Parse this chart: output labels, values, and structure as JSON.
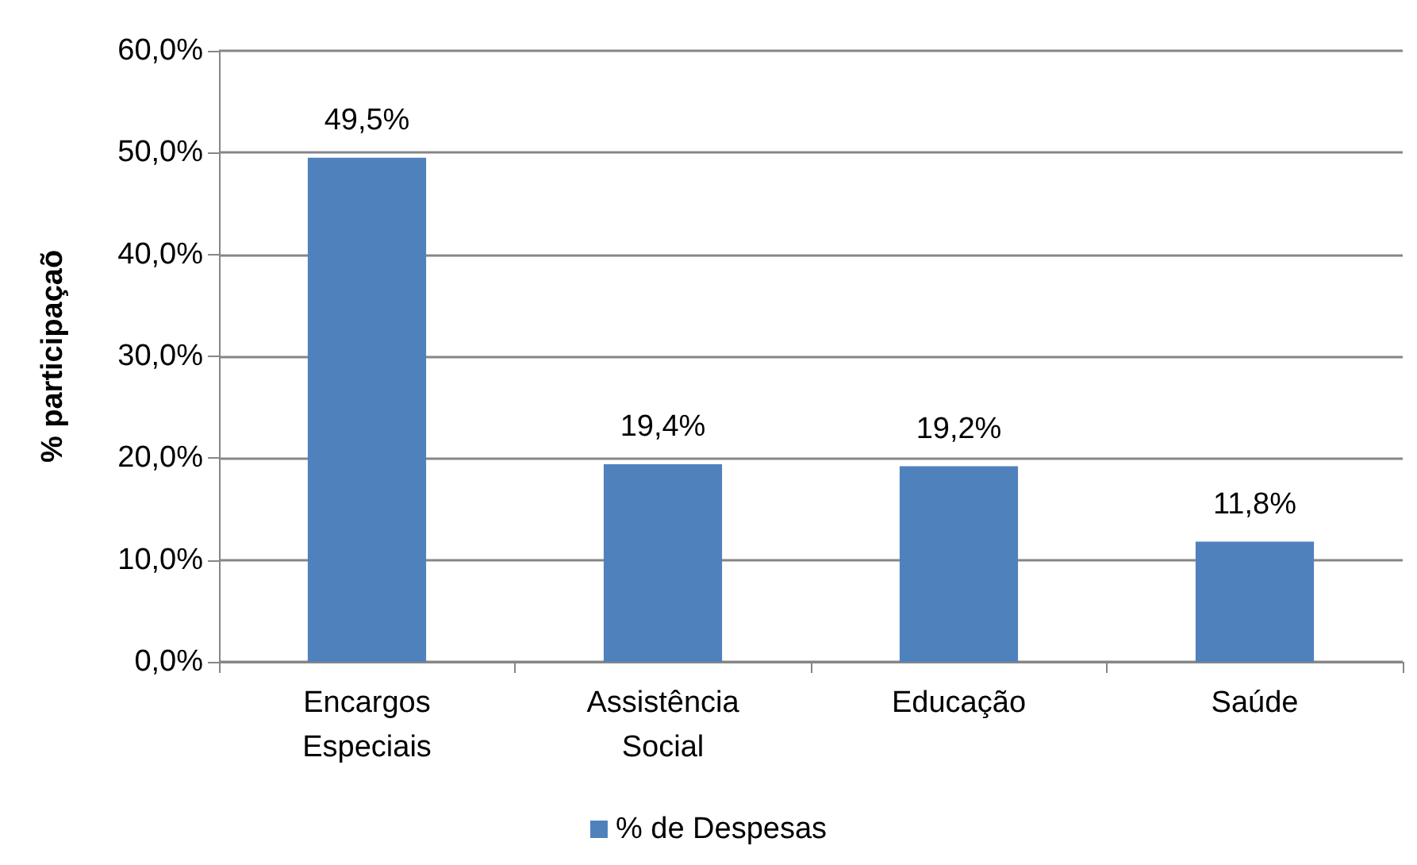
{
  "chart_data": {
    "type": "bar",
    "ylabel": "% participaçaõ",
    "categories": [
      "Encargos\nEspeciais",
      "Assistência\nSocial",
      "Educação",
      "Saúde"
    ],
    "series": [
      {
        "name": "% de Despesas",
        "color": "#4f81bd",
        "values": [
          49.5,
          19.4,
          19.2,
          11.8
        ],
        "value_labels": [
          "49,5%",
          "19,4%",
          "19,2%",
          "11,8%"
        ]
      }
    ],
    "ylim": [
      0,
      60
    ],
    "yticks": [
      {
        "value": 0,
        "label": "0,0%"
      },
      {
        "value": 10,
        "label": "10,0%"
      },
      {
        "value": 20,
        "label": "20,0%"
      },
      {
        "value": 30,
        "label": "30,0%"
      },
      {
        "value": 40,
        "label": "40,0%"
      },
      {
        "value": 50,
        "label": "50,0%"
      },
      {
        "value": 60,
        "label": "60,0%"
      }
    ],
    "grid": "y",
    "legend": "bottom"
  }
}
